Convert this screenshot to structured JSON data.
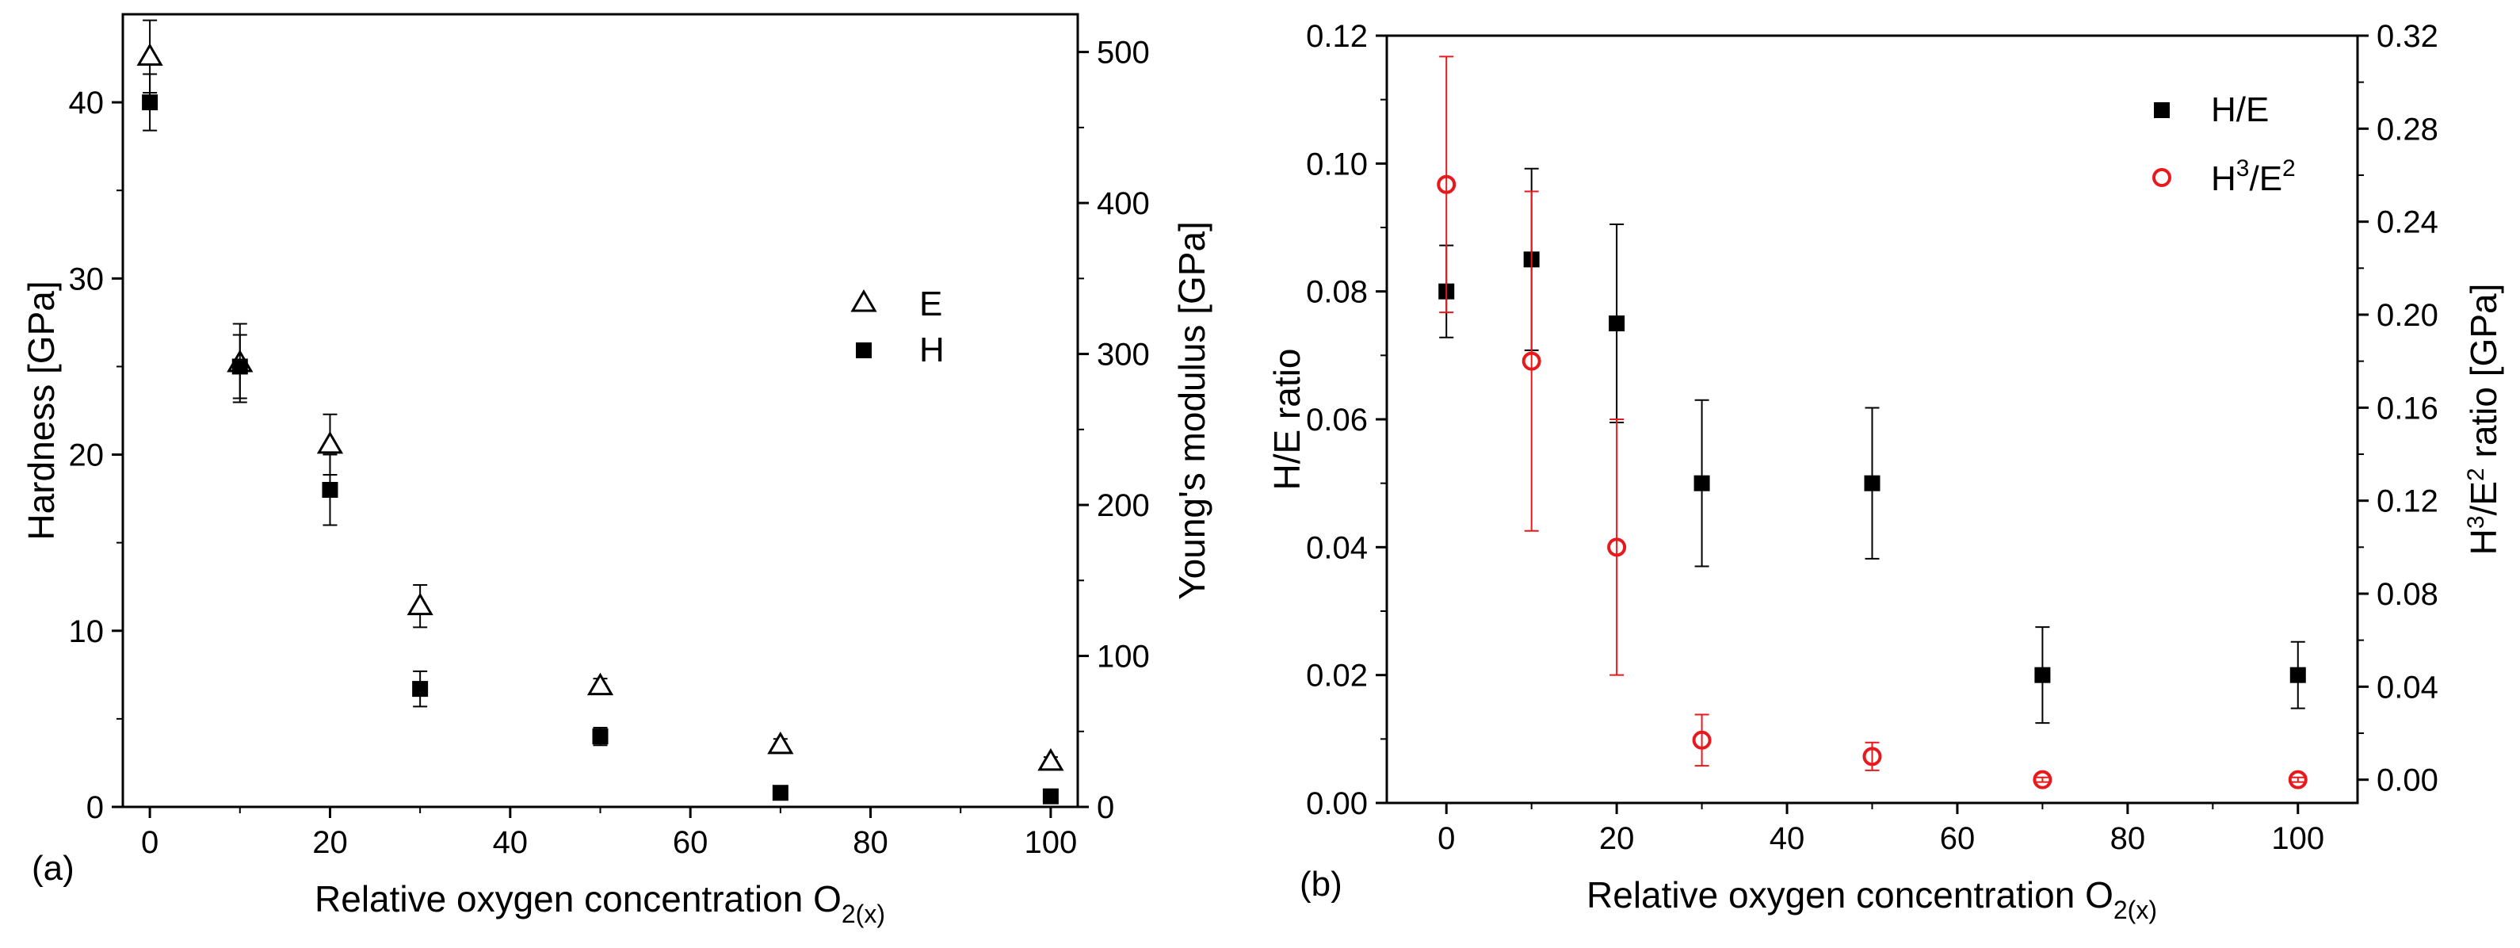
{
  "panel_labels": {
    "a": "(a)",
    "b": "(b)"
  },
  "chart_data": [
    {
      "type": "scatter",
      "panel": "(a)",
      "xlabel_main": "Relative oxygen concentration O",
      "xlabel_sub": "2(x)",
      "ylabel_left": "Hardness [GPa]",
      "ylabel_right": "Young's modulus [GPa]",
      "xlim": [
        -3,
        103
      ],
      "ylim_left": [
        0,
        45
      ],
      "ylim_right": [
        0,
        525
      ],
      "xticks": [
        0,
        20,
        40,
        60,
        80,
        100
      ],
      "yticks_left": [
        0,
        10,
        20,
        30,
        40
      ],
      "yticks_right": [
        0,
        100,
        200,
        300,
        400,
        500
      ],
      "series": [
        {
          "name": "E",
          "marker": "open-triangle",
          "axis": "right",
          "color": "#000000",
          "x": [
            0,
            10,
            20,
            30,
            50,
            70,
            100
          ],
          "values": [
            497,
            294,
            240,
            133,
            80,
            41,
            30
          ],
          "errors": [
            24,
            26,
            20,
            14,
            5,
            4,
            3
          ]
        },
        {
          "name": "H",
          "marker": "filled-square",
          "axis": "left",
          "color": "#000000",
          "x": [
            0,
            10,
            20,
            30,
            50,
            70,
            100
          ],
          "values": [
            40,
            25,
            18,
            6.7,
            4,
            0.8,
            0.6
          ],
          "errors": [
            1.6,
            1.8,
            2,
            1,
            0.5,
            0.1,
            0.1
          ]
        }
      ],
      "legend": [
        "E",
        "H"
      ]
    },
    {
      "type": "scatter",
      "panel": "(b)",
      "xlabel_main": "Relative oxygen concentration O",
      "xlabel_sub": "2(x)",
      "ylabel_left": "H/E ratio",
      "ylabel_right_prefix": "H",
      "ylabel_right_sup1": "3",
      "ylabel_right_mid": "/E",
      "ylabel_right_sup2": "2",
      "ylabel_right_suffix": " ratio [GPa]",
      "xlim": [
        -7,
        107
      ],
      "ylim_left": [
        0,
        0.12
      ],
      "ylim_right": [
        -0.01,
        0.32
      ],
      "xticks": [
        0,
        20,
        40,
        60,
        80,
        100
      ],
      "yticks_left": [
        "0.00",
        "0.02",
        "0.04",
        "0.06",
        "0.08",
        "0.10",
        "0.12"
      ],
      "yticks_right": [
        "0.00",
        "0.04",
        "0.08",
        "0.12",
        "0.16",
        "0.20",
        "0.24",
        "0.28",
        "0.32"
      ],
      "series": [
        {
          "name": "H/E",
          "marker": "filled-square",
          "axis": "left",
          "color": "#000000",
          "x": [
            0,
            10,
            20,
            30,
            50,
            70,
            100
          ],
          "values": [
            0.08,
            0.085,
            0.075,
            0.05,
            0.05,
            0.02,
            0.02
          ],
          "errors": [
            0.0072,
            0.0142,
            0.0155,
            0.013,
            0.0118,
            0.0075,
            0.0052
          ]
        },
        {
          "name": "H3/E2",
          "marker": "open-circle",
          "axis": "right",
          "color": "#e8191c",
          "x": [
            0,
            10,
            20,
            30,
            50,
            70,
            100
          ],
          "values": [
            0.256,
            0.18,
            0.1,
            0.017,
            0.01,
            0.0,
            0.0
          ],
          "errors": [
            0.055,
            0.073,
            0.055,
            0.011,
            0.006,
            0.001,
            0.001
          ]
        }
      ],
      "legend_labels": {
        "he": "H/E",
        "h3_prefix": "H",
        "h3_sup1": "3",
        "h3_mid": "/E",
        "h3_sup2": "2"
      }
    }
  ]
}
